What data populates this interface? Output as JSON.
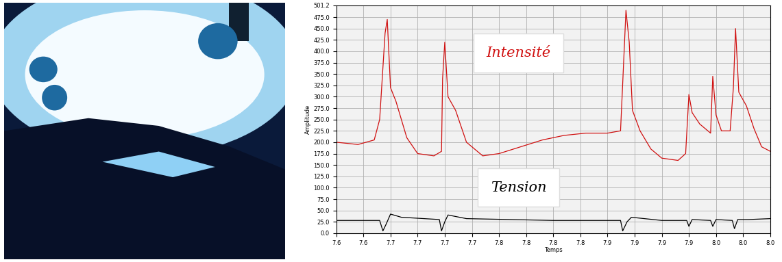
{
  "chart_data": {
    "type": "line",
    "xlabel": "Temps",
    "ylabel": "Amplitude",
    "grid": true,
    "xlim": [
      7.6,
      8.0
    ],
    "xticks": [
      {
        "value": 7.6,
        "label": "7.6"
      },
      {
        "value": 7.625,
        "label": "7.6"
      },
      {
        "value": 7.65,
        "label": "7.7"
      },
      {
        "value": 7.675,
        "label": "7.7"
      },
      {
        "value": 7.7,
        "label": "7.7"
      },
      {
        "value": 7.725,
        "label": "7.7"
      },
      {
        "value": 7.75,
        "label": "7.8"
      },
      {
        "value": 7.775,
        "label": "7.8"
      },
      {
        "value": 7.8,
        "label": "7.8"
      },
      {
        "value": 7.825,
        "label": "7.8"
      },
      {
        "value": 7.85,
        "label": "7.9"
      },
      {
        "value": 7.875,
        "label": "7.9"
      },
      {
        "value": 7.9,
        "label": "7.9"
      },
      {
        "value": 7.925,
        "label": "7.9"
      },
      {
        "value": 7.95,
        "label": "8.0"
      },
      {
        "value": 7.975,
        "label": "8.0"
      },
      {
        "value": 8.0,
        "label": "8.0"
      }
    ],
    "ylim": [
      0,
      501.2
    ],
    "yticks": [
      {
        "value": 0,
        "label": "0.0"
      },
      {
        "value": 25,
        "label": "25.0"
      },
      {
        "value": 50,
        "label": "50.0"
      },
      {
        "value": 75,
        "label": "75.0"
      },
      {
        "value": 100,
        "label": "100.0"
      },
      {
        "value": 125,
        "label": "125.0"
      },
      {
        "value": 150,
        "label": "150.0"
      },
      {
        "value": 175,
        "label": "175.0"
      },
      {
        "value": 200,
        "label": "200.0"
      },
      {
        "value": 225,
        "label": "225.0"
      },
      {
        "value": 250,
        "label": "250.0"
      },
      {
        "value": 275,
        "label": "275.0"
      },
      {
        "value": 300,
        "label": "300.0"
      },
      {
        "value": 325,
        "label": "325.0"
      },
      {
        "value": 350,
        "label": "350.0"
      },
      {
        "value": 375,
        "label": "375.0"
      },
      {
        "value": 400,
        "label": "400.0"
      },
      {
        "value": 425,
        "label": "425.0"
      },
      {
        "value": 450,
        "label": "450.0"
      },
      {
        "value": 475,
        "label": "475.0"
      },
      {
        "value": 501.2,
        "label": "501.2"
      }
    ],
    "series": [
      {
        "name": "Intensité",
        "color": "#d01010",
        "x": [
          7.6,
          7.62,
          7.635,
          7.64,
          7.645,
          7.647,
          7.65,
          7.655,
          7.665,
          7.675,
          7.69,
          7.697,
          7.698,
          7.7,
          7.703,
          7.71,
          7.72,
          7.735,
          7.75,
          7.77,
          7.79,
          7.81,
          7.83,
          7.85,
          7.862,
          7.864,
          7.867,
          7.87,
          7.873,
          7.88,
          7.89,
          7.9,
          7.915,
          7.922,
          7.925,
          7.928,
          7.935,
          7.945,
          7.947,
          7.95,
          7.955,
          7.963,
          7.966,
          7.968,
          7.971,
          7.978,
          7.985,
          7.992,
          8.0
        ],
        "values": [
          200,
          195,
          205,
          250,
          440,
          470,
          320,
          290,
          210,
          175,
          170,
          180,
          340,
          420,
          300,
          270,
          200,
          170,
          175,
          190,
          205,
          215,
          220,
          220,
          225,
          330,
          490,
          420,
          270,
          225,
          185,
          165,
          160,
          175,
          305,
          265,
          240,
          220,
          345,
          260,
          225,
          225,
          320,
          450,
          310,
          280,
          230,
          190,
          180
        ]
      },
      {
        "name": "Tension",
        "color": "#000000",
        "x": [
          7.6,
          7.64,
          7.643,
          7.646,
          7.65,
          7.66,
          7.695,
          7.697,
          7.7,
          7.703,
          7.72,
          7.8,
          7.862,
          7.864,
          7.868,
          7.872,
          7.9,
          7.923,
          7.925,
          7.928,
          7.945,
          7.947,
          7.95,
          7.965,
          7.967,
          7.97,
          7.98,
          8.0
        ],
        "values": [
          28,
          28,
          5,
          20,
          42,
          35,
          30,
          5,
          25,
          40,
          32,
          28,
          28,
          5,
          25,
          35,
          28,
          28,
          15,
          30,
          28,
          15,
          30,
          28,
          10,
          30,
          30,
          32
        ]
      }
    ]
  }
}
